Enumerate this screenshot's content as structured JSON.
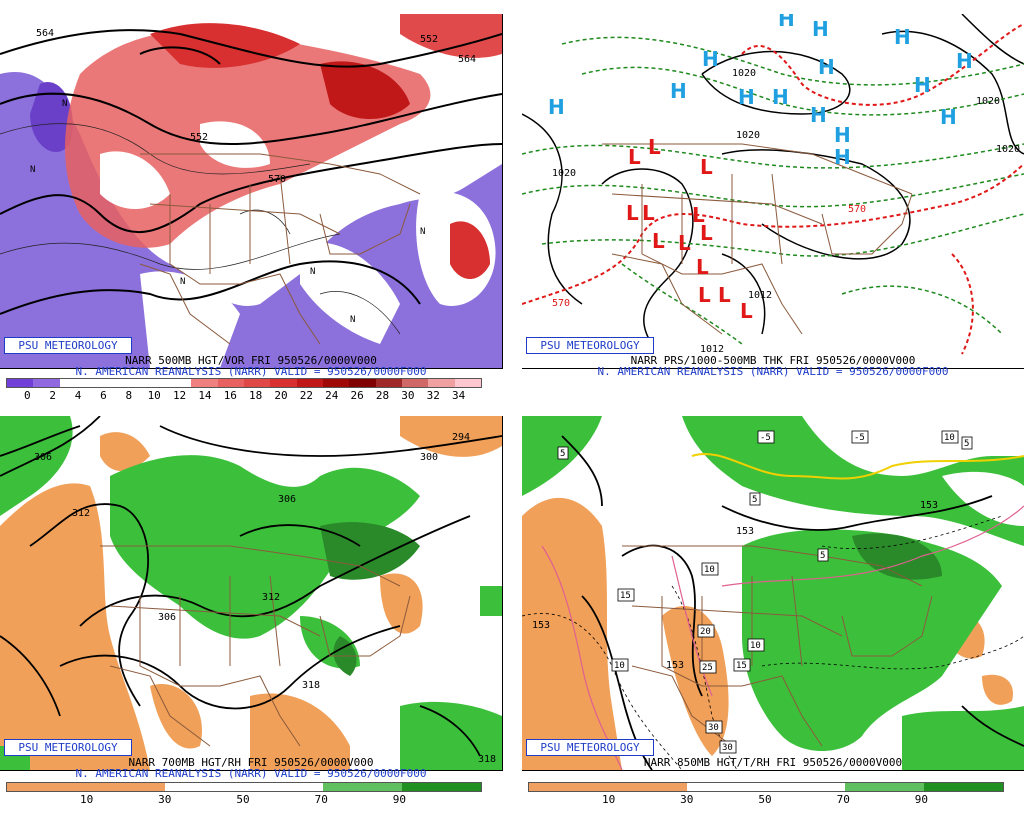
{
  "logo": "PSU METEOROLOGY",
  "panels": {
    "p1": {
      "title": "NARR 500MB HGT/VOR FRI 950526/0000V000",
      "subtitle": "N. AMERICAN REANALYSIS (NARR) VALID = 950526/0000F000",
      "contour_labels": [
        "564",
        "552",
        "564",
        "570",
        "552"
      ],
      "scale_labels": [
        "0",
        "2",
        "4",
        "6",
        "8",
        "10",
        "12",
        "14",
        "16",
        "18",
        "20",
        "22",
        "24",
        "26",
        "28",
        "30",
        "32",
        "34"
      ],
      "scale_colors": [
        "#7040d8",
        "#9068e0",
        "#ffffff",
        "#ffffff",
        "#ffffff",
        "#ffffff",
        "#ffffff",
        "#f08080",
        "#e86060",
        "#e04848",
        "#d83030",
        "#c01818",
        "#a00808",
        "#800000",
        "#a02828",
        "#d06868",
        "#f0a0a0",
        "#ffc8d0"
      ]
    },
    "p2": {
      "title": "NARR PRS/1000-500MB THK FRI 950526/0000V000",
      "subtitle": "N. AMERICAN REANALYSIS (NARR) VALID = 950526/0000F000",
      "contour_labels": [
        "1020",
        "1020",
        "1020",
        "1020",
        "1012",
        "1012",
        "570",
        "570",
        "1020"
      ]
    },
    "p3": {
      "title": "NARR 700MB HGT/RH FRI 950526/0000V000",
      "subtitle": "N. AMERICAN REANALYSIS (NARR) VALID = 950526/0000F000",
      "contour_labels": [
        "306",
        "312",
        "306",
        "312",
        "306",
        "300",
        "294",
        "318",
        "318"
      ],
      "scale_labels": [
        "10",
        "30",
        "50",
        "70",
        "90"
      ],
      "scale_colors": [
        "#f0a060",
        "#f0a060",
        "#ffffff",
        "#ffffff",
        "#60c060",
        "#209020"
      ]
    },
    "p4": {
      "title": "NARR 850MB HGT/T/RH FRI 950526/0000V000",
      "contour_labels": [
        "153",
        "153",
        "153",
        "153"
      ],
      "temp_labels": [
        "5",
        "-5",
        "-5",
        "10",
        "5",
        "5",
        "10",
        "15",
        "20",
        "25",
        "15",
        "10",
        "10",
        "30",
        "30",
        "5"
      ],
      "scale_labels": [
        "10",
        "30",
        "50",
        "70",
        "90"
      ]
    }
  },
  "colors": {
    "vort_purple": "#8060d8",
    "vort_red": "#e04a4a",
    "rh_green": "#3cc03c",
    "rh_dkgreen": "#2a8a2a",
    "rh_orange": "#f0a058",
    "high": "#20a0e0",
    "low": "#e01818",
    "border": "#8b5a3c"
  }
}
